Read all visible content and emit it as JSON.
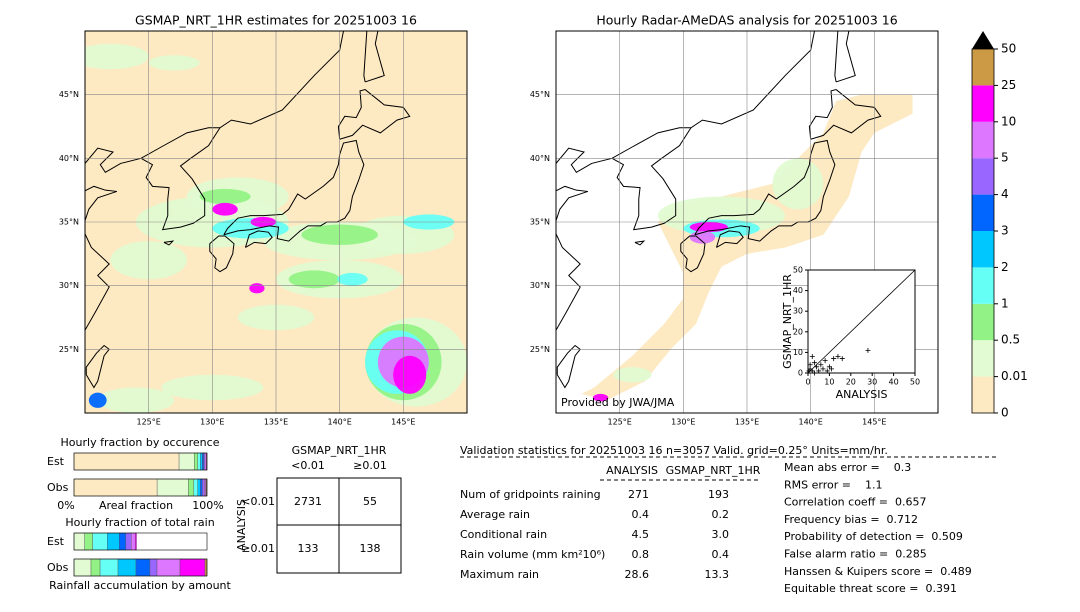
{
  "maps": [
    {
      "title": "GSMAP_NRT_1HR estimates for 20251003 16"
    },
    {
      "title": "Hourly Radar-AMeDAS analysis for 20251003 16",
      "credit": "Provided by JWA/JMA"
    }
  ],
  "lonlim": [
    120,
    150
  ],
  "latlim": [
    20,
    50
  ],
  "lonticks": [
    {
      "value": 125,
      "label": "125°E"
    },
    {
      "value": 130,
      "label": "130°E"
    },
    {
      "value": 135,
      "label": "135°E"
    },
    {
      "value": 140,
      "label": "140°E"
    },
    {
      "value": 145,
      "label": "145°E"
    }
  ],
  "latticks": [
    {
      "value": 25,
      "label": "25°N"
    },
    {
      "value": 30,
      "label": "30°N"
    },
    {
      "value": 35,
      "label": "35°N"
    },
    {
      "value": 40,
      "label": "40°N"
    },
    {
      "value": 45,
      "label": "45°N"
    }
  ],
  "colorbar": {
    "levels": [
      0,
      0.01,
      0.5,
      1,
      2,
      3,
      4,
      5,
      10,
      25,
      50
    ],
    "colors": [
      "#fde9c2",
      "#e2fbd2",
      "#93f285",
      "#66fff5",
      "#00c8ff",
      "#0066ff",
      "#9966ff",
      "#dd77ff",
      "#ff00ff",
      "#cc9944"
    ],
    "extend_color": "#000000"
  },
  "scatter": {
    "xlabel": "ANALYSIS",
    "ylabel": "GSMAP_NRT_1HR",
    "xlim": [
      0,
      50
    ],
    "ylim": [
      0,
      50
    ],
    "xticks": [
      0,
      10,
      20,
      30,
      40,
      50
    ],
    "yticks": [
      0,
      10,
      20,
      30,
      40,
      50
    ],
    "x": [
      0,
      1,
      2,
      3,
      5,
      8,
      10,
      12,
      14,
      16,
      28,
      6,
      4,
      9,
      11,
      3,
      2,
      1,
      7,
      0.5
    ],
    "y": [
      0,
      2,
      1,
      0,
      1,
      6,
      3,
      7,
      8,
      7,
      11,
      4,
      3,
      1,
      2,
      5,
      8,
      4,
      2,
      1
    ]
  },
  "occurrence": {
    "title": "Hourly fraction by occurence",
    "rows": [
      "Est",
      "Obs"
    ],
    "est": [
      79,
      11.5,
      2.5,
      2,
      1.5,
      1,
      1,
      1,
      0.5,
      0
    ],
    "obs": [
      62.5,
      23.5,
      4,
      3,
      2,
      1.5,
      1.5,
      1,
      0.5,
      0.5
    ],
    "axis_labels": [
      "0%",
      "Areal fraction",
      "100%"
    ]
  },
  "total_rain": {
    "title": "Hourly fraction of total rain",
    "rows": [
      "Est",
      "Obs"
    ],
    "est": [
      0,
      8,
      6,
      11,
      9,
      5,
      4,
      3,
      1,
      0
    ],
    "obs": [
      0,
      12.8,
      6.8,
      13.5,
      13.5,
      10.5,
      5.3,
      17.3,
      18.8,
      1.5
    ],
    "xlabel": "Rainfall accumulation by amount"
  },
  "contingency": {
    "title": "GSMAP_NRT_1HR",
    "col_labels": [
      "<0.01",
      "≥0.01"
    ],
    "row_title": "ANALYSIS",
    "row_labels": [
      "<0.01",
      "≥0.01"
    ],
    "cells": [
      [
        2731,
        55
      ],
      [
        133,
        138
      ]
    ]
  },
  "validation": {
    "header": "Validation statistics for 20251003 16  n=3057 Valid. grid=0.25° Units=mm/hr.",
    "columns": [
      "ANALYSIS",
      "GSMAP_NRT_1HR"
    ],
    "rows": [
      {
        "label": "Num of gridpoints raining",
        "values": [
          "271",
          "193"
        ]
      },
      {
        "label": "Average rain",
        "values": [
          "0.4",
          "0.2"
        ]
      },
      {
        "label": "Conditional rain",
        "values": [
          "4.5",
          "3.0"
        ]
      },
      {
        "label": "Rain volume (mm km²10⁶)",
        "values": [
          "0.8",
          "0.4"
        ]
      },
      {
        "label": "Maximum rain",
        "values": [
          "28.6",
          "13.3"
        ]
      }
    ],
    "scores": [
      "Mean abs error =    0.3",
      "RMS error =    1.1",
      "Correlation coeff =  0.657",
      "Frequency bias =  0.712",
      "Probability of detection =  0.509",
      "False alarm ratio =  0.285",
      "Hanssen & Kuipers score =  0.489",
      "Equitable threat score =  0.391"
    ]
  }
}
